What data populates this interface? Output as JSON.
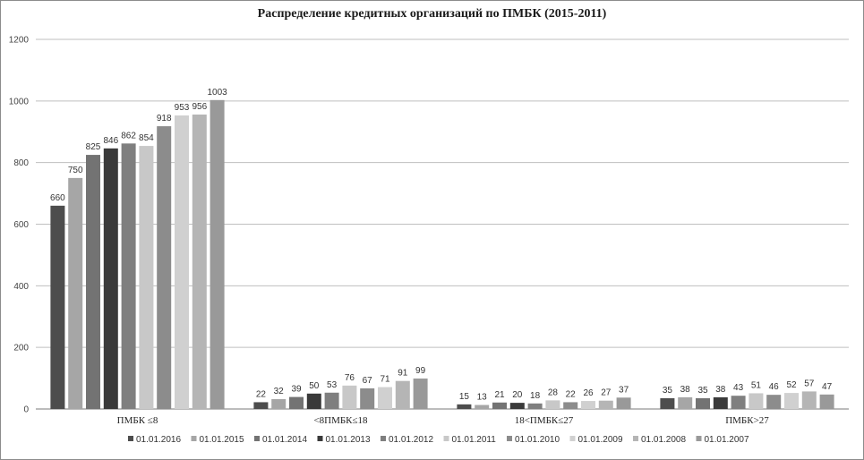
{
  "chart_data": {
    "type": "bar",
    "title": "Распределение кредитных организаций по ПМБК (2015-2011)",
    "categories": [
      "ПМБК ≤8",
      "<8ПМБК≤18",
      "18<ПМБК≤27",
      "ПМБК>27"
    ],
    "ylim": [
      0,
      1200
    ],
    "yticks": [
      0,
      200,
      400,
      600,
      800,
      1000,
      1200
    ],
    "grid": true,
    "legend_position": "bottom",
    "series": [
      {
        "name": "01.01.2016",
        "color": "#4d4d4d",
        "values": [
          660,
          22,
          15,
          35
        ]
      },
      {
        "name": "01.01.2015",
        "color": "#a6a6a6",
        "values": [
          750,
          32,
          13,
          38
        ]
      },
      {
        "name": "01.01.2014",
        "color": "#737373",
        "values": [
          825,
          39,
          21,
          35
        ]
      },
      {
        "name": "01.01.2013",
        "color": "#3a3a3a",
        "values": [
          846,
          50,
          20,
          38
        ]
      },
      {
        "name": "01.01.2012",
        "color": "#7f7f7f",
        "values": [
          862,
          53,
          18,
          43
        ]
      },
      {
        "name": "01.01.2011",
        "color": "#c8c8c8",
        "values": [
          854,
          76,
          28,
          51
        ]
      },
      {
        "name": "01.01.2010",
        "color": "#8c8c8c",
        "values": [
          918,
          67,
          22,
          46
        ]
      },
      {
        "name": "01.01.2009",
        "color": "#d0d0d0",
        "values": [
          953,
          71,
          26,
          52
        ]
      },
      {
        "name": "01.01.2008",
        "color": "#b5b5b5",
        "values": [
          956,
          91,
          27,
          57
        ]
      },
      {
        "name": "01.01.2007",
        "color": "#999999",
        "values": [
          1003,
          99,
          37,
          47
        ]
      }
    ]
  }
}
